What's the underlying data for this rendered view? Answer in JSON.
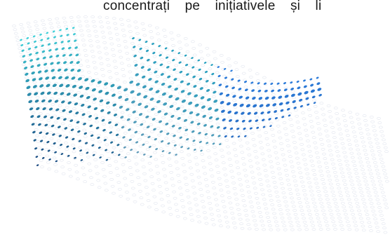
{
  "page": {
    "caption": "concentrați pe inițiativele și li"
  },
  "graphic": {
    "icon": "dotted-wave-graphic-icon",
    "colors": {
      "cyan": "#3fd0d8",
      "teal": "#1fa0c0",
      "blue": "#2d7fe0",
      "navy": "#173f7a",
      "grey_blue": "#8a97b3",
      "outline": "#b9c3d8"
    }
  }
}
